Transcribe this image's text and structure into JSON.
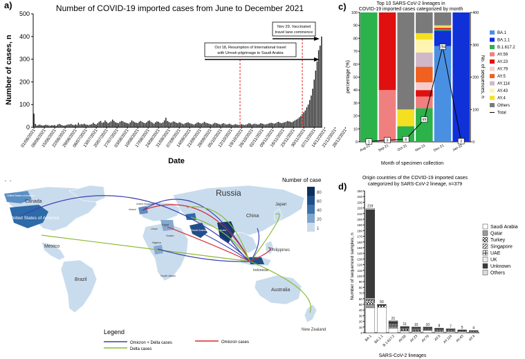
{
  "panels": {
    "a": {
      "letter": "a)",
      "chart_data": {
        "type": "bar",
        "title": "Number of COVID-19 imported cases from June to December 2021",
        "xlabel": "Date",
        "ylabel": "Number of cases, n",
        "ylim": [
          0,
          500
        ],
        "yticks": [
          0,
          100,
          200,
          300,
          400,
          500
        ],
        "date_labels": [
          "01/06/2021",
          "08/06/2021",
          "15/06/2021",
          "22/06/2021",
          "29/06/2021",
          "06/07/2021",
          "13/07/2021",
          "20/07/2021",
          "27/07/2021",
          "03/08/2021",
          "10/08/2021",
          "17/08/2021",
          "24/08/2021",
          "31/08/2021",
          "07/09/2021",
          "14/09/2021",
          "21/09/2021",
          "28/09/2021",
          "05/10/2021",
          "12/10/2021",
          "19/10/2021",
          "26/10/2021",
          "02/11/2021",
          "09/11/2021",
          "16/11/2021",
          "23/11/2021",
          "30/11/2021",
          "07/12/2021",
          "14/12/2021",
          "21/12/2021",
          "28/12/2021"
        ],
        "daily_values": [
          60,
          15,
          8,
          10,
          12,
          9,
          7,
          9,
          11,
          10,
          8,
          7,
          9,
          8,
          10,
          6,
          12,
          15,
          12,
          9,
          7,
          8,
          10,
          13,
          12,
          15,
          11,
          9,
          13,
          10,
          20,
          12,
          14,
          13,
          16,
          12,
          11,
          10,
          12,
          14,
          20,
          15,
          12,
          18,
          24,
          28,
          20,
          22,
          30,
          24,
          18,
          22,
          26,
          34,
          28,
          22,
          20,
          18,
          24,
          28,
          26,
          22,
          20,
          18,
          16,
          22,
          30,
          26,
          22,
          20,
          18,
          24,
          28,
          24,
          20,
          18,
          22,
          28,
          30,
          24,
          20,
          16,
          22,
          26,
          24,
          20,
          18,
          22,
          30,
          42,
          28,
          24,
          20,
          22,
          26,
          24,
          20,
          18,
          22,
          20,
          16,
          14,
          18,
          20,
          22,
          18,
          16,
          14,
          12,
          16,
          20,
          22,
          18,
          16,
          20,
          24,
          20,
          18,
          16,
          14,
          12,
          16,
          20,
          18,
          16,
          14,
          12,
          16,
          18,
          14,
          12,
          14,
          16,
          12,
          10,
          12,
          14,
          12,
          10,
          12,
          14,
          12,
          10,
          12,
          14,
          18,
          16,
          12,
          14,
          16,
          14,
          12,
          14,
          18,
          16,
          14,
          12,
          14,
          16,
          18,
          20,
          18,
          16,
          18,
          22,
          24,
          20,
          18,
          20,
          22,
          24,
          28,
          26,
          24,
          22,
          26,
          30,
          34,
          38,
          44,
          50,
          58,
          66,
          74,
          88,
          100,
          120,
          140,
          170,
          210,
          250,
          290,
          340,
          360,
          400
        ],
        "annotations": [
          {
            "date": "18/10/2021",
            "text_line1": "Oct 18, Resumption of International travel",
            "text_line2": "with Umrah pilgrimage to Saudi Arabia"
          },
          {
            "date": "29/11/2021",
            "text_line1": "Nov 29, Vaccinated",
            "text_line2": "travel lane commence"
          }
        ]
      }
    },
    "b": {
      "letter": "b)",
      "scale_title": "Number of case",
      "scale_ticks": [
        "80",
        "60",
        "40",
        "20",
        "1"
      ],
      "country_labels": {
        "canada": "Canada",
        "usa": "United States of America",
        "usa_small": "United States of America",
        "mexico": "Mexico",
        "brazil": "Brazil",
        "russia": "Russia",
        "china": "China",
        "japan": "Japan",
        "philippines": "Philippines",
        "indonesia": "Indonesia",
        "australia": "Australia",
        "newzealand": "New Zealand",
        "nigeria": "Nigeria",
        "southafrica": "South Africa",
        "uk": "United Kingdom",
        "ireland": "Ireland",
        "egypt": "Egypt",
        "saudi": "Saudi Arabia",
        "india": "India",
        "sudan": "Sudan",
        "libya": "Libya"
      },
      "legend": {
        "title": "Legend",
        "items": [
          {
            "label": "Omicron + Delta cases",
            "color": "#3b3fb0"
          },
          {
            "label": "Omicron cases",
            "color": "#d2282e"
          },
          {
            "label": "Delta cases",
            "color": "#8cb833"
          }
        ]
      }
    },
    "c": {
      "letter": "c)",
      "chart_data": {
        "type": "stacked-bar-with-line",
        "title_line1": "Top 10 SARS-CoV-2 lineages in",
        "title_line2": "COVID-19 imported cases categorized by month",
        "xlabel": "Month of specimen collection",
        "ylabel": "percentage (%)",
        "y2label": "No. of sequences, n",
        "ylim": [
          0,
          100
        ],
        "y2lim": [
          0,
          400
        ],
        "yticks": [
          0,
          10,
          20,
          30,
          40,
          50,
          60,
          70,
          80,
          90,
          100
        ],
        "y2ticks": [
          0,
          100,
          200,
          300,
          400
        ],
        "categories": [
          "Aug-21",
          "Sep-21",
          "Oct-21",
          "Nov-21",
          "Dec-21",
          "Jan-22"
        ],
        "series": [
          {
            "name": "BA.1",
            "color": "#4a90e2",
            "values": [
              0,
              0,
              0,
              0,
              74,
              0
            ]
          },
          {
            "name": "BA.1.1",
            "color": "#1030d8",
            "values": [
              0,
              0,
              0,
              0,
              12,
              100
            ]
          },
          {
            "name": "B.1.617.2",
            "color": "#2bb24a",
            "values": [
              100,
              0,
              12,
              26,
              1,
              0
            ]
          },
          {
            "name": "AY.59",
            "color": "#f08080",
            "values": [
              0,
              40,
              0,
              9,
              0,
              0
            ]
          },
          {
            "name": "AY.23",
            "color": "#e01010",
            "values": [
              0,
              60,
              0,
              5,
              1,
              0
            ]
          },
          {
            "name": "AY.79",
            "color": "#f5cccc",
            "values": [
              0,
              0,
              0,
              6,
              1,
              0
            ]
          },
          {
            "name": "AY.5",
            "color": "#f06020",
            "values": [
              0,
              0,
              0,
              12,
              0,
              0
            ]
          },
          {
            "name": "AY.114",
            "color": "#d0b8c8",
            "values": [
              0,
              0,
              0,
              11,
              0,
              0
            ]
          },
          {
            "name": "AY.43",
            "color": "#fff4b0",
            "values": [
              0,
              0,
              0,
              10,
              0,
              0
            ]
          },
          {
            "name": "AY.4",
            "color": "#f4e020",
            "values": [
              0,
              0,
              13,
              5,
              1,
              0
            ]
          },
          {
            "name": "Others",
            "color": "#7a7a7a",
            "values": [
              0,
              0,
              75,
              16,
              10,
              0
            ]
          }
        ],
        "total": {
          "name": "Total",
          "values": [
            1,
            5,
            8,
            69,
            294,
            2
          ],
          "labels": [
            "1",
            "5",
            "8",
            "69",
            "294",
            "2"
          ]
        }
      }
    },
    "d": {
      "letter": "d)",
      "chart_data": {
        "type": "stacked-bar",
        "title_line1": "Origin countries of the COVID-19 imported cases",
        "title_line2": "categorized by SARS-CoV-2 lineage, n=379",
        "xlabel": "SARS-CoV-2 lineages",
        "ylabel": "Number of sequenced samples, n",
        "ylim": [
          0,
          250
        ],
        "yticks": [
          0,
          10,
          20,
          30,
          40,
          50,
          60,
          70,
          80,
          90,
          100,
          110,
          120,
          130,
          140,
          150,
          160,
          170,
          180,
          190,
          200,
          210,
          220,
          230,
          240,
          250
        ],
        "categories": [
          "BA.1",
          "BA.1.1",
          "B.1.617.2",
          "AY.59",
          "AY.23",
          "AY.79",
          "AY.5",
          "AY.114",
          "AY.43",
          "AY.4"
        ],
        "totals": [
          219,
          50,
          21,
          11,
          10,
          10,
          8,
          7,
          5,
          4
        ],
        "total_labels": [
          "219",
          "50",
          "21",
          "11",
          "10",
          "10",
          "8",
          "7",
          "5",
          "4"
        ],
        "series": [
          {
            "name": "Saudi Arabia",
            "values": [
              44,
              45,
              8,
              3,
              2,
              4,
              2,
              2,
              2,
              1
            ],
            "pattern": "p-white"
          },
          {
            "name": "Qatar",
            "values": [
              6,
              0,
              2,
              1,
              1,
              1,
              0,
              1,
              0,
              0
            ],
            "pattern": "p-grey"
          },
          {
            "name": "Turkey",
            "values": [
              4,
              3,
              2,
              2,
              1,
              1,
              1,
              1,
              1,
              1
            ],
            "pattern": "p-check"
          },
          {
            "name": "Singapore",
            "values": [
              3,
              0,
              1,
              1,
              1,
              0,
              1,
              1,
              0,
              0
            ],
            "pattern": "p-diag"
          },
          {
            "name": "UAE",
            "values": [
              2,
              0,
              2,
              1,
              1,
              1,
              1,
              1,
              1,
              1
            ],
            "pattern": "p-hash"
          },
          {
            "name": "UK",
            "values": [
              2,
              0,
              1,
              0,
              1,
              0,
              1,
              0,
              0,
              0
            ],
            "pattern": "p-grid"
          },
          {
            "name": "Unknown",
            "values": [
              156,
              2,
              4,
              3,
              3,
              3,
              2,
              1,
              1,
              1
            ],
            "pattern": "p-dark"
          },
          {
            "name": "Others",
            "values": [
              2,
              0,
              1,
              0,
              0,
              0,
              0,
              0,
              0,
              0
            ],
            "pattern": "p-light"
          }
        ]
      }
    }
  }
}
